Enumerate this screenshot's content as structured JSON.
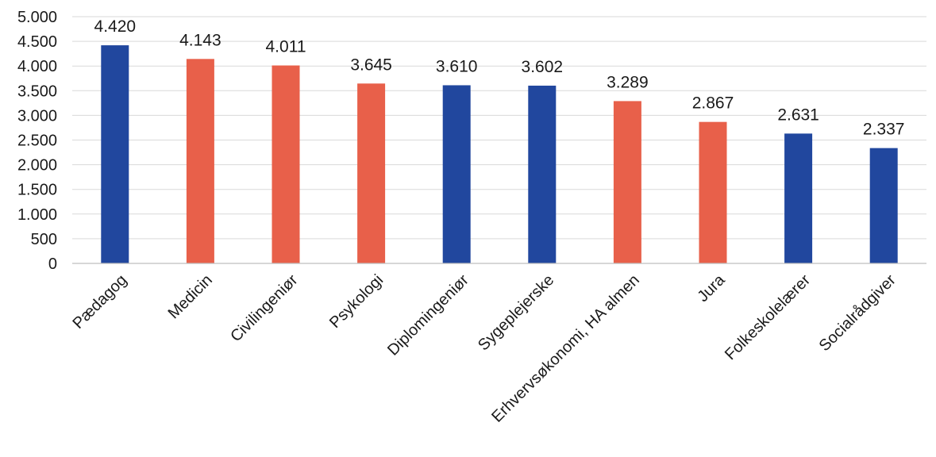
{
  "chart_data": {
    "type": "bar",
    "title": "",
    "xlabel": "",
    "ylabel": "",
    "categories": [
      "Pædagog",
      "Medicin",
      "Civilingeniør",
      "Psykologi",
      "Diplomingeniør",
      "Sygeplejerske",
      "Erhvervsøkonomi, HA almen",
      "Jura",
      "Folkeskolelærer",
      "Socialrådgiver"
    ],
    "values": [
      4420,
      4143,
      4011,
      3645,
      3610,
      3602,
      3289,
      2867,
      2631,
      2337
    ],
    "value_labels": [
      "4.420",
      "4.143",
      "4.011",
      "3.645",
      "3.610",
      "3.602",
      "3.289",
      "2.867",
      "2.631",
      "2.337"
    ],
    "bar_colors": [
      "#21479e",
      "#e8604a",
      "#e8604a",
      "#e8604a",
      "#21479e",
      "#21479e",
      "#e8604a",
      "#e8604a",
      "#21479e",
      "#21479e"
    ],
    "ylim": [
      0,
      5000
    ],
    "yticks": [
      0,
      500,
      1000,
      1500,
      2000,
      2500,
      3000,
      3500,
      4000,
      4500,
      5000
    ],
    "ytick_labels": [
      "0",
      "500",
      "1.000",
      "1.500",
      "2.000",
      "2.500",
      "3.000",
      "3.500",
      "4.000",
      "4.500",
      "5.000"
    ],
    "grid": true,
    "legend": "none"
  }
}
